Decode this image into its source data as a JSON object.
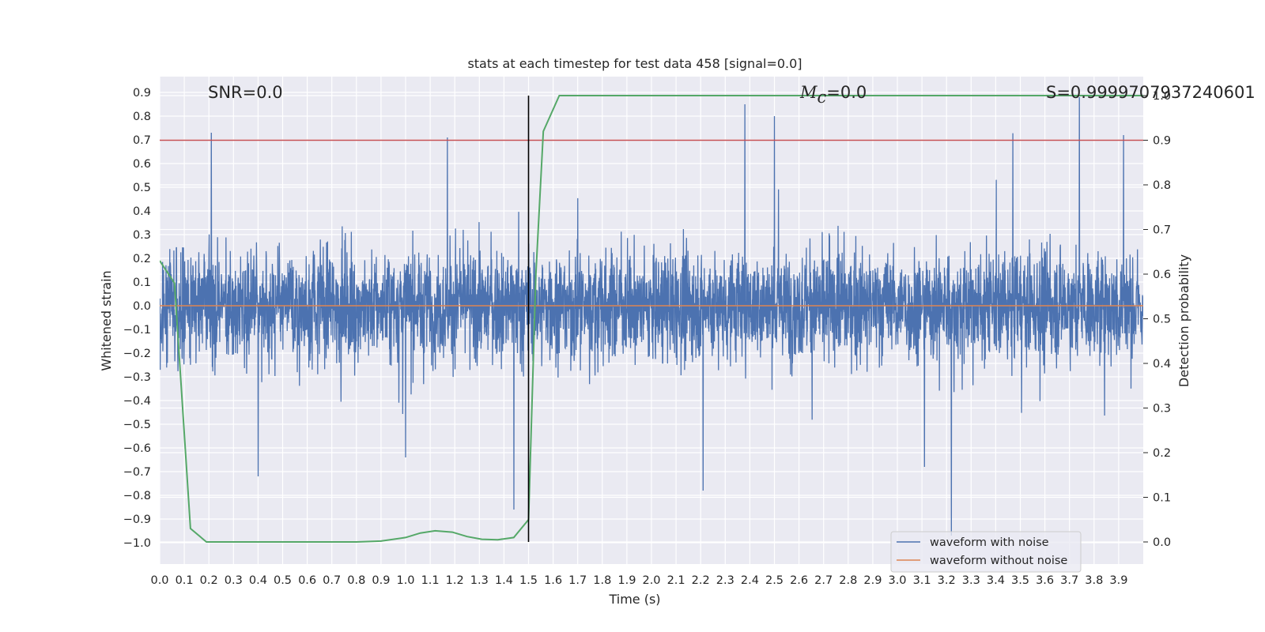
{
  "chart_data": {
    "type": "line",
    "title": "stats at each timestep for test data 458 [signal=0.0]",
    "xlabel": "Time (s)",
    "ylabel": "Whitened strain",
    "y2label": "Detection probability",
    "xlim": [
      0.0,
      4.0
    ],
    "ylim": [
      -1.09,
      0.97
    ],
    "y2lim": [
      -0.05,
      1.04
    ],
    "grid": true,
    "legend_position": "lower-right",
    "x_ticks": [
      "0.0",
      "0.1",
      "0.2",
      "0.3",
      "0.4",
      "0.5",
      "0.6",
      "0.7",
      "0.8",
      "0.9",
      "1.0",
      "1.1",
      "1.2",
      "1.3",
      "1.4",
      "1.5",
      "1.6",
      "1.7",
      "1.8",
      "1.9",
      "2.0",
      "2.1",
      "2.2",
      "2.3",
      "2.4",
      "2.5",
      "2.6",
      "2.7",
      "2.8",
      "2.9",
      "3.0",
      "3.1",
      "3.2",
      "3.3",
      "3.4",
      "3.5",
      "3.6",
      "3.7",
      "3.8",
      "3.9"
    ],
    "y_ticks": [
      "0.9",
      "0.8",
      "0.7",
      "0.6",
      "0.5",
      "0.4",
      "0.3",
      "0.2",
      "0.1",
      "0.0",
      "−0.1",
      "−0.2",
      "−0.3",
      "−0.4",
      "−0.5",
      "−0.6",
      "−0.7",
      "−0.8",
      "−0.9",
      "−1.0"
    ],
    "y2_ticks": [
      "1.0",
      "0.9",
      "0.8",
      "0.7",
      "0.6",
      "0.5",
      "0.4",
      "0.3",
      "0.2",
      "0.1",
      "0.0"
    ],
    "annotations": {
      "snr": "SNR=0.0",
      "mc_symbol": "M",
      "mc_sub": "c",
      "mc_value": "=0.0",
      "s": "S=0.9999707937240601"
    },
    "threshold_y2": 0.9,
    "vline_x": 1.5,
    "series": [
      {
        "name": "waveform with noise",
        "color": "#4c72b0",
        "kind": "noise",
        "sample_rate_hz": 1024
      },
      {
        "name": "waveform without noise",
        "color": "#dd8452",
        "values_constant": 0.0
      },
      {
        "name": "detection probability",
        "color": "#55a868",
        "x": [
          0.0,
          0.06,
          0.125,
          0.19,
          0.5,
          0.8,
          0.9,
          1.0,
          1.06,
          1.12,
          1.19,
          1.25,
          1.31,
          1.375,
          1.44,
          1.5,
          1.53,
          1.56,
          1.625,
          4.0
        ],
        "y": [
          0.63,
          0.58,
          0.03,
          0.0,
          0.0,
          0.0,
          0.002,
          0.01,
          0.02,
          0.025,
          0.022,
          0.012,
          0.006,
          0.005,
          0.01,
          0.05,
          0.6,
          0.92,
          1.0,
          1.0
        ]
      },
      {
        "name": "threshold",
        "color": "#c44e52",
        "y2": 0.9
      },
      {
        "name": "trigger",
        "color": "#000000",
        "x": 1.5
      }
    ],
    "noise_spikes": [
      {
        "x": 0.21,
        "y": 0.73
      },
      {
        "x": 2.38,
        "y": 0.85
      },
      {
        "x": 2.5,
        "y": 0.8
      },
      {
        "x": 3.74,
        "y": 0.88
      },
      {
        "x": 3.22,
        "y": -0.97
      },
      {
        "x": 1.44,
        "y": -0.86
      },
      {
        "x": 2.21,
        "y": -0.78
      },
      {
        "x": 0.4,
        "y": -0.72
      },
      {
        "x": 3.11,
        "y": -0.68
      },
      {
        "x": 1.0,
        "y": -0.64
      },
      {
        "x": 3.92,
        "y": 0.72
      },
      {
        "x": 1.17,
        "y": 0.71
      }
    ]
  },
  "legend": {
    "with_noise": "waveform with noise",
    "without_noise": "waveform without noise"
  }
}
